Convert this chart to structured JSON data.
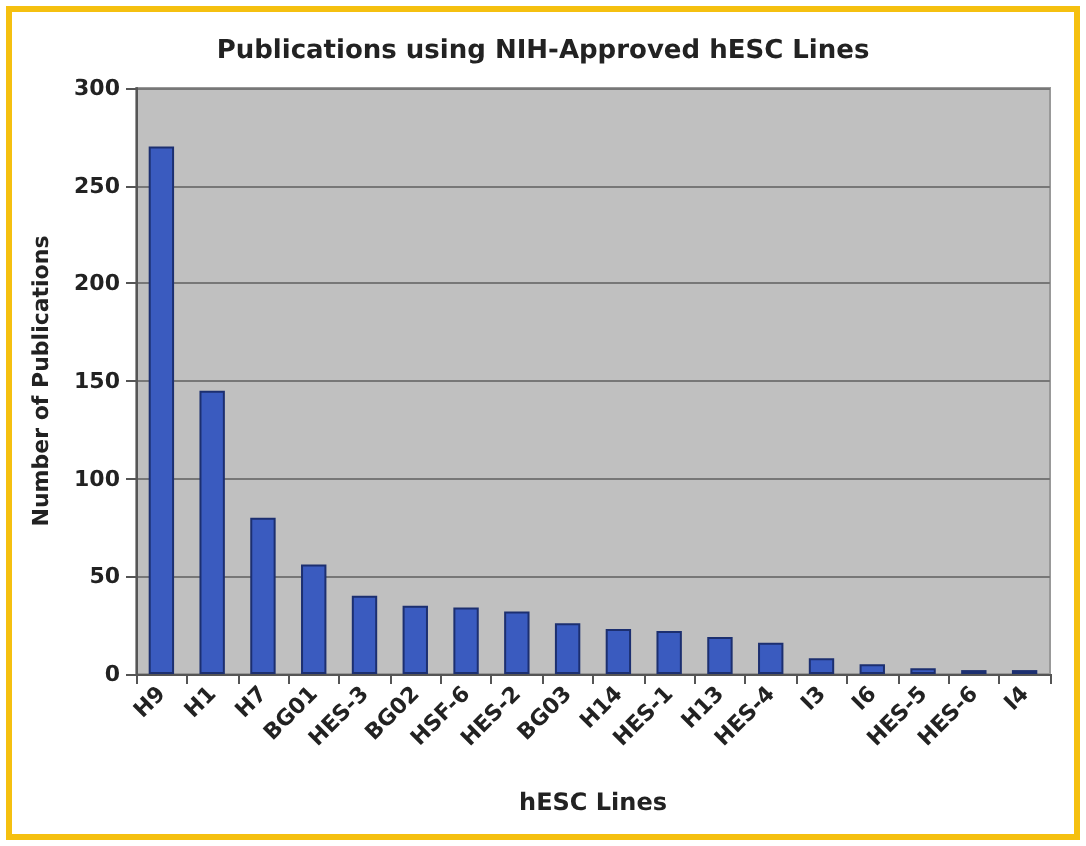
{
  "chart_data": {
    "type": "bar",
    "title": "Publications using NIH-Approved hESC Lines",
    "xlabel": "hESC Lines",
    "ylabel": "Number of Publications",
    "categories": [
      "H9",
      "H1",
      "H7",
      "BG01",
      "HES-3",
      "BG02",
      "HSF-6",
      "HES-2",
      "BG03",
      "H14",
      "HES-1",
      "H13",
      "HES-4",
      "I3",
      "I6",
      "HES-5",
      "HES-6",
      "I4"
    ],
    "values": [
      270,
      145,
      80,
      56,
      40,
      35,
      34,
      32,
      26,
      23,
      22,
      19,
      16,
      8,
      5,
      3,
      2,
      2
    ],
    "color": "#3a5bbf",
    "ylim": [
      0,
      300
    ],
    "yticks": [
      0,
      50,
      100,
      150,
      200,
      250,
      300
    ],
    "grid": "y"
  }
}
